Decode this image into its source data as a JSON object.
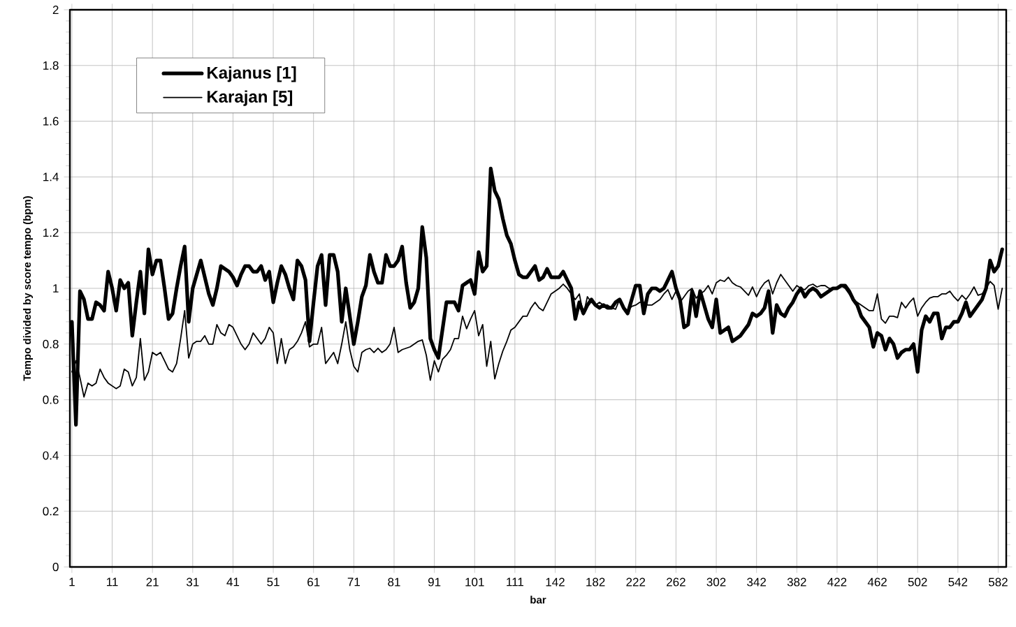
{
  "chart_data": {
    "type": "line",
    "xlabel": "bar",
    "ylabel": "Tempo divided by score tempo (bpm)",
    "categories": [
      "1",
      null,
      null,
      null,
      null,
      null,
      null,
      null,
      null,
      null,
      "11",
      null,
      null,
      null,
      null,
      null,
      null,
      null,
      null,
      null,
      "21",
      null,
      null,
      null,
      null,
      null,
      null,
      null,
      null,
      null,
      "31",
      null,
      null,
      null,
      null,
      null,
      null,
      null,
      null,
      null,
      "41",
      null,
      null,
      null,
      null,
      null,
      null,
      null,
      null,
      null,
      "51",
      null,
      null,
      null,
      null,
      null,
      null,
      null,
      null,
      null,
      "61",
      null,
      null,
      null,
      null,
      null,
      null,
      null,
      null,
      null,
      "71",
      null,
      null,
      null,
      null,
      null,
      null,
      null,
      null,
      null,
      "81",
      null,
      null,
      null,
      null,
      null,
      null,
      null,
      null,
      null,
      "91",
      null,
      null,
      null,
      null,
      null,
      null,
      null,
      null,
      null,
      "101",
      null,
      null,
      null,
      null,
      null,
      null,
      null,
      null,
      null,
      "111",
      null,
      null,
      null,
      null,
      null,
      null,
      null,
      null,
      null,
      "142",
      null,
      null,
      null,
      null,
      null,
      null,
      null,
      null,
      null,
      "182",
      null,
      null,
      null,
      null,
      null,
      null,
      null,
      null,
      null,
      "222",
      null,
      null,
      null,
      null,
      null,
      null,
      null,
      null,
      null,
      "262",
      null,
      null,
      null,
      null,
      null,
      null,
      null,
      null,
      null,
      "302",
      null,
      null,
      null,
      null,
      null,
      null,
      null,
      null,
      null,
      "342",
      null,
      null,
      null,
      null,
      null,
      null,
      null,
      null,
      null,
      "382",
      null,
      null,
      null,
      null,
      null,
      null,
      null,
      null,
      null,
      "422",
      null,
      null,
      null,
      null,
      null,
      null,
      null,
      null,
      null,
      "462",
      null,
      null,
      null,
      null,
      null,
      null,
      null,
      null,
      null,
      "502",
      null,
      null,
      null,
      null,
      null,
      null,
      null,
      null,
      null,
      "542",
      null,
      null,
      null,
      null,
      null,
      null,
      null,
      null,
      null,
      "582",
      null
    ],
    "series": [
      {
        "name": "Kajanus [1]",
        "color": "#000000",
        "values": [
          0.88,
          0.51,
          0.99,
          0.96,
          0.89,
          0.89,
          0.95,
          0.94,
          0.92,
          1.06,
          1.0,
          0.92,
          1.03,
          1.0,
          1.02,
          0.83,
          0.95,
          1.06,
          0.91,
          1.14,
          1.05,
          1.1,
          1.1,
          1.0,
          0.89,
          0.91,
          1.0,
          1.08,
          1.15,
          0.88,
          1.0,
          1.05,
          1.1,
          1.04,
          0.98,
          0.94,
          1.0,
          1.08,
          1.07,
          1.06,
          1.04,
          1.01,
          1.05,
          1.08,
          1.08,
          1.06,
          1.06,
          1.08,
          1.03,
          1.06,
          0.95,
          1.02,
          1.08,
          1.05,
          1.0,
          0.96,
          1.1,
          1.08,
          1.03,
          0.81,
          0.95,
          1.08,
          1.12,
          0.94,
          1.12,
          1.12,
          1.06,
          0.88,
          1.0,
          0.9,
          0.8,
          0.88,
          0.97,
          1.01,
          1.12,
          1.06,
          1.02,
          1.02,
          1.12,
          1.08,
          1.08,
          1.1,
          1.15,
          1.02,
          0.93,
          0.95,
          1.0,
          1.22,
          1.11,
          0.82,
          0.78,
          0.75,
          0.85,
          0.95,
          0.95,
          0.95,
          0.92,
          1.01,
          1.02,
          1.03,
          0.98,
          1.13,
          1.06,
          1.08,
          1.43,
          1.35,
          1.32,
          1.25,
          1.19,
          1.16,
          1.1,
          1.05,
          1.04,
          1.04,
          1.06,
          1.08,
          1.03,
          1.04,
          1.07,
          1.04,
          1.04,
          1.04,
          1.06,
          1.03,
          1.0,
          0.89,
          0.95,
          0.91,
          0.94,
          0.96,
          0.94,
          0.93,
          0.94,
          0.93,
          0.93,
          0.95,
          0.96,
          0.93,
          0.91,
          0.96,
          1.01,
          1.01,
          0.91,
          0.98,
          1.0,
          1.0,
          0.99,
          1.0,
          1.03,
          1.06,
          1.0,
          0.96,
          0.86,
          0.87,
          0.99,
          0.9,
          0.99,
          0.94,
          0.89,
          0.86,
          0.96,
          0.84,
          0.85,
          0.86,
          0.81,
          0.82,
          0.83,
          0.85,
          0.87,
          0.91,
          0.9,
          0.91,
          0.93,
          0.99,
          0.84,
          0.94,
          0.91,
          0.9,
          0.93,
          0.95,
          0.98,
          1.0,
          0.97,
          0.99,
          1.0,
          0.99,
          0.97,
          0.98,
          0.99,
          1.0,
          1.0,
          1.01,
          1.01,
          0.99,
          0.96,
          0.94,
          0.9,
          0.88,
          0.86,
          0.79,
          0.84,
          0.83,
          0.78,
          0.82,
          0.8,
          0.75,
          0.77,
          0.78,
          0.78,
          0.8,
          0.7,
          0.85,
          0.9,
          0.88,
          0.91,
          0.91,
          0.82,
          0.86,
          0.86,
          0.88,
          0.88,
          0.91,
          0.95,
          0.9,
          0.92,
          0.94,
          0.96,
          1.0,
          1.1,
          1.06,
          1.08,
          1.14
        ]
      },
      {
        "name": "Karajan [5]",
        "color": "#000000",
        "values": [
          0.7,
          0.74,
          0.68,
          0.61,
          0.66,
          0.65,
          0.66,
          0.71,
          0.68,
          0.66,
          0.65,
          0.64,
          0.65,
          0.71,
          0.7,
          0.65,
          0.68,
          0.82,
          0.67,
          0.7,
          0.77,
          0.76,
          0.77,
          0.74,
          0.71,
          0.7,
          0.73,
          0.82,
          0.92,
          0.75,
          0.8,
          0.81,
          0.81,
          0.83,
          0.8,
          0.8,
          0.87,
          0.84,
          0.83,
          0.87,
          0.86,
          0.83,
          0.8,
          0.78,
          0.8,
          0.84,
          0.82,
          0.8,
          0.82,
          0.86,
          0.84,
          0.73,
          0.82,
          0.73,
          0.78,
          0.79,
          0.81,
          0.84,
          0.88,
          0.79,
          0.8,
          0.8,
          0.86,
          0.73,
          0.75,
          0.77,
          0.73,
          0.8,
          0.88,
          0.78,
          0.72,
          0.7,
          0.77,
          0.78,
          0.785,
          0.77,
          0.785,
          0.77,
          0.78,
          0.8,
          0.86,
          0.77,
          0.78,
          0.785,
          0.79,
          0.8,
          0.81,
          0.815,
          0.76,
          0.67,
          0.74,
          0.7,
          0.745,
          0.76,
          0.78,
          0.82,
          0.82,
          0.9,
          0.855,
          0.89,
          0.92,
          0.83,
          0.87,
          0.72,
          0.81,
          0.675,
          0.73,
          0.775,
          0.81,
          0.85,
          0.86,
          0.88,
          0.9,
          0.9,
          0.93,
          0.95,
          0.93,
          0.92,
          0.95,
          0.98,
          0.99,
          1.0,
          1.015,
          1.0,
          0.98,
          0.96,
          0.98,
          0.905,
          0.97,
          0.95,
          0.94,
          0.95,
          0.94,
          0.94,
          0.93,
          0.925,
          0.96,
          0.93,
          0.92,
          0.935,
          0.94,
          0.95,
          0.95,
          0.94,
          0.94,
          0.95,
          0.96,
          0.98,
          0.995,
          0.96,
          0.99,
          0.95,
          0.97,
          0.99,
          1.0,
          0.965,
          0.98,
          0.99,
          1.01,
          0.98,
          1.02,
          1.03,
          1.025,
          1.04,
          1.02,
          1.01,
          1.005,
          0.99,
          0.975,
          1.005,
          0.97,
          1.0,
          1.02,
          1.03,
          0.98,
          1.02,
          1.05,
          1.03,
          1.01,
          0.99,
          1.01,
          1.0,
          0.995,
          1.01,
          1.015,
          1.005,
          1.01,
          1.01,
          1.0,
          1.0,
          1.005,
          1.01,
          1.0,
          0.98,
          0.96,
          0.95,
          0.94,
          0.93,
          0.92,
          0.92,
          0.98,
          0.89,
          0.875,
          0.9,
          0.9,
          0.895,
          0.95,
          0.93,
          0.95,
          0.965,
          0.9,
          0.93,
          0.95,
          0.965,
          0.97,
          0.97,
          0.98,
          0.98,
          0.99,
          0.97,
          0.955,
          0.975,
          0.96,
          0.98,
          1.005,
          0.975,
          0.98,
          1.0,
          1.025,
          1.01,
          0.925,
          1.0
        ]
      }
    ],
    "ylim": [
      0,
      2
    ],
    "yticks": [
      0,
      0.2,
      0.4,
      0.6,
      0.8,
      1,
      1.2,
      1.4,
      1.6,
      1.8,
      2
    ],
    "grid": true,
    "legend": "top left",
    "marker": "none",
    "line_style": "solid"
  }
}
